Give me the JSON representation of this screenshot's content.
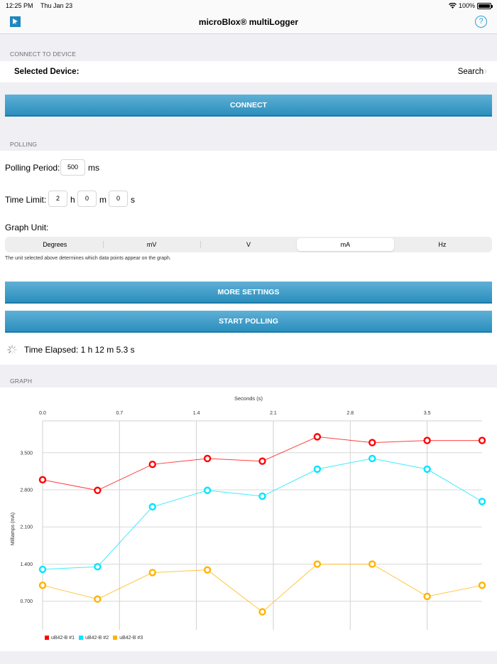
{
  "status_bar": {
    "time": "12:25 PM",
    "date": "Thu Jan 23",
    "battery": "100%"
  },
  "nav": {
    "title": "microBlox® multiLogger",
    "help_icon": "?"
  },
  "connect_section": {
    "header": "CONNECT TO DEVICE",
    "selected_device_label": "Selected Device:",
    "search_label": "Search",
    "search_chevron": "›",
    "connect_button": "CONNECT"
  },
  "polling_section": {
    "header": "POLLING",
    "polling_period_label": "Polling Period:",
    "polling_period_value": "500",
    "polling_period_unit": "ms",
    "time_limit_label": "Time Limit:",
    "time_limit_hours": "2",
    "hours_unit": "h",
    "time_limit_minutes": "0",
    "minutes_unit": "m",
    "time_limit_seconds": "0",
    "seconds_unit": "s",
    "graph_unit_label": "Graph Unit:",
    "units": [
      "Degrees",
      "mV",
      "V",
      "mA",
      "Hz"
    ],
    "selected_unit": "mA",
    "unit_hint": "The unit selected above determines which data points appear on the graph.",
    "more_settings_button": "MORE SETTINGS",
    "start_polling_button": "START POLLING",
    "time_elapsed": "Time Elapsed: 1 h 12 m 5.3 s"
  },
  "graph_section": {
    "header": "GRAPH"
  },
  "chart_data": {
    "type": "line",
    "title": "",
    "xlabel": "Seconds (s)",
    "ylabel": "Milliamps (mA)",
    "x_axis_position": "top",
    "x_ticks": [
      "0.0",
      "0.7",
      "1.4",
      "2.1",
      "2.8",
      "3.5"
    ],
    "y_ticks": [
      "3.500",
      "2.800",
      "2.100",
      "1.400",
      "0.700"
    ],
    "xlim": [
      0.0,
      4.0
    ],
    "ylim": [
      0.16,
      4.1
    ],
    "grid": true,
    "legend_position": "bottom-left",
    "x": [
      0.0,
      0.5,
      1.0,
      1.5,
      2.0,
      2.5,
      3.0,
      3.5,
      4.0
    ],
    "series": [
      {
        "name": "uB42-B #1",
        "color": "#ff0000",
        "values": [
          2.99,
          2.79,
          3.28,
          3.39,
          3.34,
          3.8,
          3.69,
          3.73,
          3.73
        ]
      },
      {
        "name": "uB42-B #2",
        "color": "#00e5ff",
        "values": [
          1.3,
          1.35,
          2.48,
          2.79,
          2.68,
          3.19,
          3.39,
          3.19,
          2.58
        ]
      },
      {
        "name": "uB42-B #3",
        "color": "#ffb300",
        "values": [
          1.0,
          0.74,
          1.24,
          1.29,
          0.5,
          1.4,
          1.4,
          0.79,
          1.0
        ]
      }
    ]
  }
}
